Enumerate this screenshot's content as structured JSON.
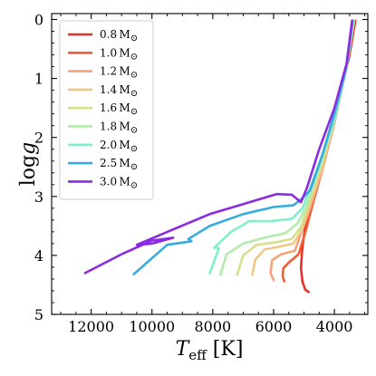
{
  "chart_data": {
    "type": "line",
    "xlabel": {
      "main": "T",
      "sub": "eff",
      "unit": " [K]"
    },
    "ylabel": {
      "main": "log",
      "var": "g"
    },
    "xlim": [
      13300,
      2900
    ],
    "ylim": [
      5,
      -0.1
    ],
    "xticks": [
      12000,
      10000,
      8000,
      6000,
      4000
    ],
    "yticks": [
      0,
      1,
      2,
      3,
      4,
      5
    ],
    "grid": false,
    "legend_position": "upper-left",
    "series": [
      {
        "name": "0.8 M⊙",
        "mass": "0.8",
        "unit": "M",
        "sym": "⊙",
        "color": "#e5312a",
        "x": [
          4850,
          4960,
          5050,
          5100,
          5060,
          4960,
          4850,
          4600,
          4250,
          3900,
          3520,
          3310
        ],
        "y": [
          4.62,
          4.58,
          4.45,
          4.22,
          3.9,
          3.5,
          3.2,
          2.7,
          2.05,
          1.4,
          0.65,
          0.02
        ]
      },
      {
        "name": "1.0 M⊙",
        "mass": "1.0",
        "unit": "M",
        "sym": "⊙",
        "color": "#f25d35",
        "x": [
          5650,
          5700,
          5680,
          5500,
          5180,
          4950,
          4750,
          4400,
          4000,
          3600,
          3340
        ],
        "y": [
          4.44,
          4.35,
          4.22,
          4.12,
          3.98,
          3.6,
          3.2,
          2.55,
          1.75,
          0.8,
          0.02
        ]
      },
      {
        "name": "1.2 M⊙",
        "mass": "1.2",
        "unit": "M",
        "sym": "⊙",
        "color": "#f8a27a",
        "x": [
          6000,
          6100,
          6050,
          5750,
          5300,
          5050,
          4800,
          4400,
          4000,
          3600,
          3350
        ],
        "y": [
          4.42,
          4.3,
          4.08,
          3.98,
          3.92,
          3.55,
          3.2,
          2.55,
          1.75,
          0.8,
          0.02
        ]
      },
      {
        "name": "1.4 M⊙",
        "mass": "1.4",
        "unit": "M",
        "sym": "⊙",
        "color": "#f0c885",
        "x": [
          6700,
          6600,
          6300,
          5800,
          5350,
          5050,
          4850,
          4400,
          4000,
          3600,
          3360
        ],
        "y": [
          4.33,
          4.07,
          3.9,
          3.85,
          3.8,
          3.55,
          3.2,
          2.5,
          1.7,
          0.8,
          0.02
        ]
      },
      {
        "name": "1.6 M⊙",
        "mass": "1.6",
        "unit": "M",
        "sym": "⊙",
        "color": "#d4e08c",
        "x": [
          7200,
          7000,
          6550,
          5950,
          5400,
          5100,
          4900,
          4450,
          4000,
          3600,
          3370
        ],
        "y": [
          4.33,
          4.0,
          3.82,
          3.78,
          3.72,
          3.52,
          3.2,
          2.5,
          1.7,
          0.8,
          0.02
        ]
      },
      {
        "name": "1.8 M⊙",
        "mass": "1.8",
        "unit": "M",
        "sym": "⊙",
        "color": "#b2ecaa",
        "x": [
          7750,
          7550,
          7000,
          6300,
          5600,
          5200,
          4950,
          4450,
          4000,
          3600,
          3380
        ],
        "y": [
          4.33,
          3.98,
          3.8,
          3.7,
          3.62,
          3.45,
          3.2,
          2.45,
          1.7,
          0.8,
          0.02
        ]
      },
      {
        "name": "2.0 M⊙",
        "mass": "2.0",
        "unit": "M",
        "sym": "⊙",
        "color": "#7ff0ca",
        "x": [
          8100,
          7800,
          7950,
          7400,
          6800,
          6100,
          5400,
          5050,
          4500,
          4000,
          3600,
          3390
        ],
        "y": [
          4.3,
          3.88,
          3.87,
          3.6,
          3.42,
          3.42,
          3.38,
          3.2,
          2.45,
          1.7,
          0.8,
          0.02
        ]
      },
      {
        "name": "2.5 M⊙",
        "mass": "2.5",
        "unit": "M",
        "sym": "⊙",
        "color": "#35acde",
        "x": [
          10600,
          9500,
          8700,
          8800,
          8100,
          7000,
          6000,
          5350,
          5100,
          4800,
          4400,
          4000,
          3600,
          3400
        ],
        "y": [
          4.32,
          3.82,
          3.76,
          3.72,
          3.5,
          3.3,
          3.18,
          3.15,
          3.05,
          2.9,
          2.3,
          1.6,
          0.8,
          0.02
        ]
      },
      {
        "name": "3.0 M⊙",
        "mass": "3.0",
        "unit": "M",
        "sym": "⊙",
        "color": "#8a2be2",
        "x": [
          12200,
          11000,
          10000,
          9300,
          10000,
          10500,
          9400,
          8100,
          6800,
          5900,
          5400,
          5100,
          4900,
          4500,
          4000,
          3600,
          3420
        ],
        "y": [
          4.3,
          3.98,
          3.75,
          3.7,
          3.8,
          3.82,
          3.58,
          3.3,
          3.1,
          2.96,
          2.97,
          3.1,
          2.85,
          2.2,
          1.5,
          0.75,
          0.02
        ]
      }
    ]
  }
}
